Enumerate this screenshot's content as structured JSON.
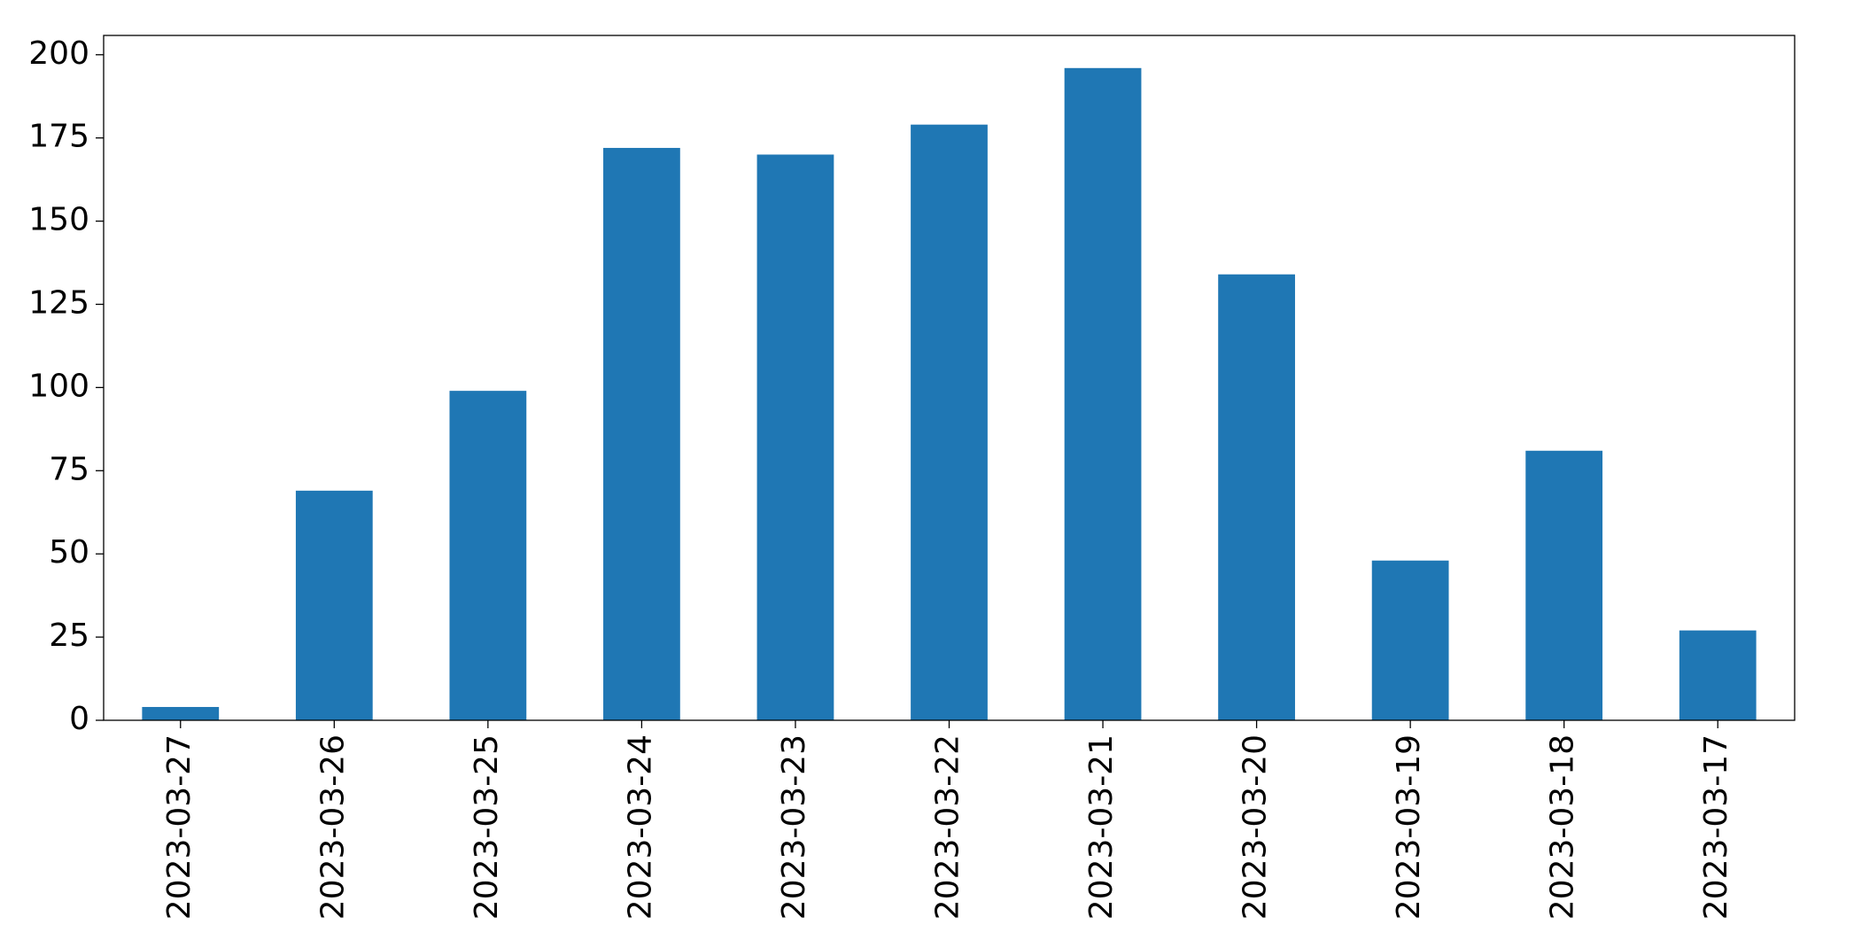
{
  "chart_data": {
    "type": "bar",
    "categories": [
      "2023-03-27",
      "2023-03-26",
      "2023-03-25",
      "2023-03-24",
      "2023-03-23",
      "2023-03-22",
      "2023-03-21",
      "2023-03-20",
      "2023-03-19",
      "2023-03-18",
      "2023-03-17"
    ],
    "values": [
      4,
      69,
      99,
      172,
      170,
      179,
      196,
      134,
      48,
      81,
      27
    ],
    "color": "#1f77b4",
    "ylim": [
      0,
      205.8
    ],
    "yticks": [
      0,
      25,
      50,
      75,
      100,
      125,
      150,
      175,
      200
    ],
    "grid": false
  }
}
